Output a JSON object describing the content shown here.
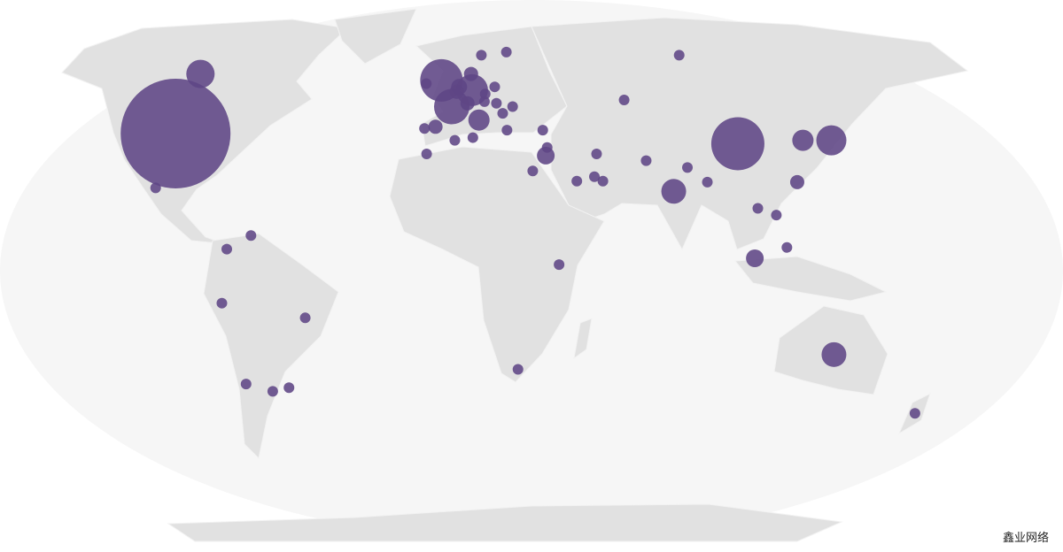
{
  "map": {
    "projection": "robinson",
    "ocean_color": "#f6f6f6",
    "land_color": "#e1e1e1",
    "bubble_color": "#5e4585",
    "bubble_opacity": 0.88,
    "bubbles": [
      {
        "lon": -98,
        "lat": 38,
        "size": 3844
      },
      {
        "lon": -100,
        "lat": 56,
        "size": 256
      },
      {
        "lon": -100,
        "lat": 22,
        "size": 36
      },
      {
        "lon": -66,
        "lat": 8,
        "size": 36
      },
      {
        "lon": -74,
        "lat": 4,
        "size": 36
      },
      {
        "lon": -76,
        "lat": -11,
        "size": 36
      },
      {
        "lon": -48,
        "lat": -15,
        "size": 36
      },
      {
        "lon": -71,
        "lat": -33,
        "size": 36
      },
      {
        "lon": -62,
        "lat": -35,
        "size": 36
      },
      {
        "lon": -56,
        "lat": -34,
        "size": 36
      },
      {
        "lon": -2,
        "lat": 54,
        "size": 576
      },
      {
        "lon": -8,
        "lat": 53,
        "size": 36
      },
      {
        "lon": 2,
        "lat": 46,
        "size": 400
      },
      {
        "lon": 10,
        "lat": 51,
        "size": 324
      },
      {
        "lon": 5,
        "lat": 52,
        "size": 81
      },
      {
        "lon": 4,
        "lat": 50.5,
        "size": 64
      },
      {
        "lon": 8,
        "lat": 47,
        "size": 64
      },
      {
        "lon": 12,
        "lat": 42,
        "size": 144
      },
      {
        "lon": -4,
        "lat": 40,
        "size": 64
      },
      {
        "lon": -8,
        "lat": 39.5,
        "size": 36
      },
      {
        "lon": 15,
        "lat": 62,
        "size": 36
      },
      {
        "lon": 10,
        "lat": 56,
        "size": 64
      },
      {
        "lon": 26,
        "lat": 63,
        "size": 36
      },
      {
        "lon": 19,
        "lat": 52,
        "size": 36
      },
      {
        "lon": 15,
        "lat": 49.8,
        "size": 36
      },
      {
        "lon": 14.5,
        "lat": 47.5,
        "size": 36
      },
      {
        "lon": 19,
        "lat": 47,
        "size": 36
      },
      {
        "lon": 25,
        "lat": 46,
        "size": 36
      },
      {
        "lon": 21,
        "lat": 44,
        "size": 36
      },
      {
        "lon": 22,
        "lat": 39,
        "size": 36
      },
      {
        "lon": 35,
        "lat": 39,
        "size": 36
      },
      {
        "lon": 35,
        "lat": 31.5,
        "size": 100
      },
      {
        "lon": 35.8,
        "lat": 33.9,
        "size": 36
      },
      {
        "lon": 30,
        "lat": 27,
        "size": 36
      },
      {
        "lon": 45,
        "lat": 24,
        "size": 36
      },
      {
        "lon": 54,
        "lat": 24,
        "size": 36
      },
      {
        "lon": 51.2,
        "lat": 25.3,
        "size": 36
      },
      {
        "lon": 53,
        "lat": 32,
        "size": 36
      },
      {
        "lon": -7,
        "lat": 32,
        "size": 36
      },
      {
        "lon": 3,
        "lat": 36,
        "size": 36
      },
      {
        "lon": 9.5,
        "lat": 36.8,
        "size": 36
      },
      {
        "lon": 100,
        "lat": 62,
        "size": 36
      },
      {
        "lon": 68,
        "lat": 48,
        "size": 36
      },
      {
        "lon": 70,
        "lat": 30,
        "size": 36
      },
      {
        "lon": 78,
        "lat": 21,
        "size": 196
      },
      {
        "lon": 84,
        "lat": 28,
        "size": 36
      },
      {
        "lon": 90,
        "lat": 23.7,
        "size": 36
      },
      {
        "lon": 104,
        "lat": 35,
        "size": 900
      },
      {
        "lon": 127.8,
        "lat": 36,
        "size": 144
      },
      {
        "lon": 138,
        "lat": 36,
        "size": 289
      },
      {
        "lon": 121,
        "lat": 23.7,
        "size": 64
      },
      {
        "lon": 106,
        "lat": 16,
        "size": 36
      },
      {
        "lon": 112,
        "lat": 14,
        "size": 36
      },
      {
        "lon": 103.8,
        "lat": 1.3,
        "size": 100
      },
      {
        "lon": 114.7,
        "lat": 4.5,
        "size": 36
      },
      {
        "lon": 37.9,
        "lat": -0.5,
        "size": 36
      },
      {
        "lon": 25,
        "lat": -29,
        "size": 36
      },
      {
        "lon": 134,
        "lat": -25,
        "size": 196
      },
      {
        "lon": 172,
        "lat": -41,
        "size": 36
      }
    ]
  },
  "watermark": "鑫业网络"
}
